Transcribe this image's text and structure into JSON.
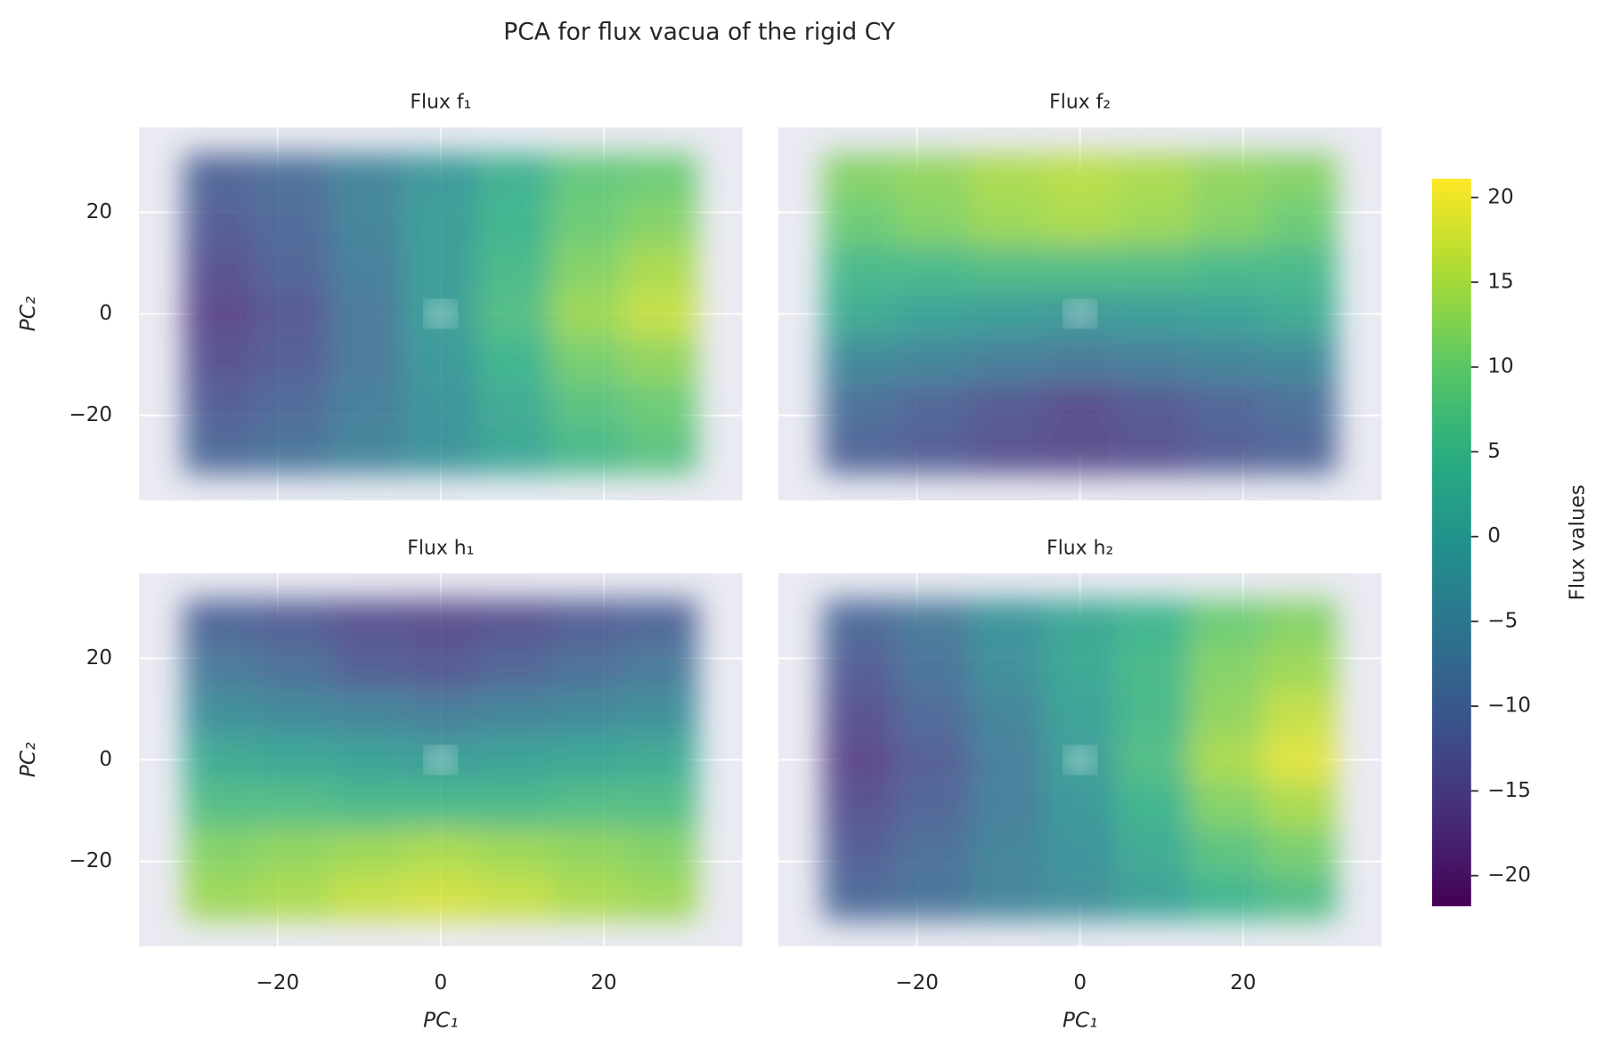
{
  "chart_data": {
    "type": "heatmap",
    "title": "PCA for flux vacua of the rigid CY",
    "xlabel": "PC₁",
    "ylabel": "PC₂",
    "xlim": [
      -37,
      37
    ],
    "ylim": [
      -36.7,
      36.7
    ],
    "xticks": [
      {
        "value": -20,
        "label": "−20"
      },
      0,
      20
    ],
    "yticks": [
      {
        "value": -20,
        "label": "−20"
      },
      0,
      20
    ],
    "grid": true,
    "x": [
      -27,
      -18,
      -9,
      0,
      9,
      18,
      27
    ],
    "y": [
      27,
      18,
      9,
      0,
      -9,
      -18,
      -27
    ],
    "panels": [
      {
        "title": "Flux f₁",
        "values": [
          [
            -11,
            -9,
            -5,
            -1,
            4,
            9,
            10
          ],
          [
            -12,
            -10,
            -5,
            0,
            5,
            10,
            12
          ],
          [
            -14,
            -11,
            -6,
            0,
            6,
            12,
            15
          ],
          [
            -16,
            -13,
            -7,
            0,
            7,
            14,
            17
          ],
          [
            -14,
            -12,
            -7,
            -1,
            5,
            11,
            13
          ],
          [
            -12,
            -10,
            -6,
            -2,
            3,
            8,
            10
          ],
          [
            -10,
            -8,
            -5,
            -2,
            2,
            6,
            8
          ]
        ]
      },
      {
        "title": "Flux f₂",
        "values": [
          [
            12,
            13,
            15,
            16,
            15,
            13,
            12
          ],
          [
            10,
            12,
            14,
            15,
            14,
            12,
            10
          ],
          [
            6,
            6,
            7,
            7,
            7,
            6,
            6
          ],
          [
            3,
            1,
            0,
            -1,
            0,
            1,
            3
          ],
          [
            -4,
            -5,
            -6,
            -7,
            -6,
            -5,
            -4
          ],
          [
            -9,
            -11,
            -13,
            -15,
            -13,
            -11,
            -9
          ],
          [
            -11,
            -12,
            -14,
            -15,
            -14,
            -12,
            -11
          ]
        ]
      },
      {
        "title": "Flux h₁",
        "values": [
          [
            -11,
            -12,
            -14,
            -15,
            -14,
            -12,
            -11
          ],
          [
            -7,
            -9,
            -12,
            -13,
            -11,
            -9,
            -7
          ],
          [
            -3,
            -4,
            -5,
            -6,
            -5,
            -4,
            -3
          ],
          [
            3,
            2,
            1,
            0,
            1,
            2,
            3
          ],
          [
            7,
            7,
            6,
            6,
            6,
            7,
            7
          ],
          [
            12,
            13,
            14,
            15,
            14,
            13,
            12
          ],
          [
            14,
            15,
            17,
            18,
            17,
            15,
            14
          ]
        ]
      },
      {
        "title": "Flux h₂",
        "values": [
          [
            -10,
            -7,
            -2,
            2,
            5,
            10,
            12
          ],
          [
            -12,
            -8,
            -3,
            2,
            6,
            12,
            14
          ],
          [
            -14,
            -10,
            -5,
            1,
            6,
            13,
            17
          ],
          [
            -16,
            -12,
            -6,
            0,
            7,
            15,
            19
          ],
          [
            -14,
            -11,
            -6,
            -1,
            5,
            12,
            15
          ],
          [
            -12,
            -9,
            -5,
            -2,
            3,
            8,
            11
          ],
          [
            -10,
            -8,
            -5,
            -3,
            1,
            5,
            7
          ]
        ]
      }
    ],
    "colorbar": {
      "label": "Flux values",
      "colormap": "viridis",
      "lim": [
        -21.8,
        21.1
      ],
      "ticks": [
        {
          "value": -20,
          "label": "−20"
        },
        {
          "value": -15,
          "label": "−15"
        },
        {
          "value": -10,
          "label": "−10"
        },
        {
          "value": -5,
          "label": "−5"
        },
        0,
        5,
        10,
        15,
        20
      ]
    }
  }
}
